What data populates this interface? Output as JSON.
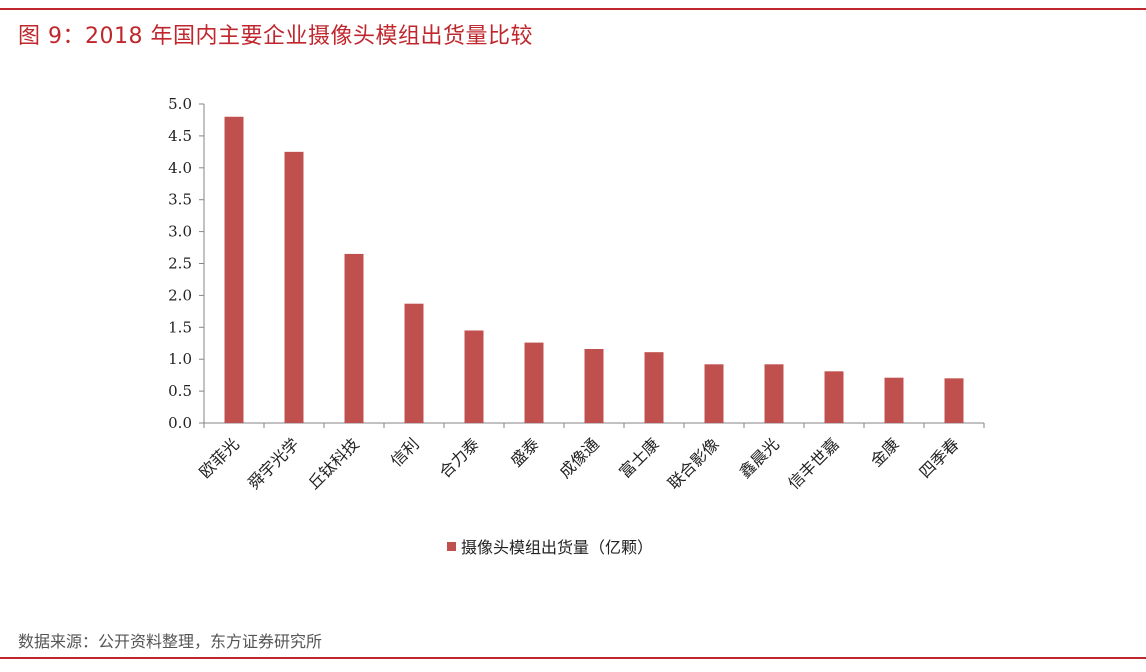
{
  "title": "图 9：2018 年国内主要企业摄像头模组出货量比较",
  "source": "数据来源：公开资料整理，东方证券研究所",
  "chart_data": {
    "type": "bar",
    "categories": [
      "欧菲光",
      "舜宇光学",
      "丘钛科技",
      "信利",
      "合力泰",
      "盛泰",
      "成像通",
      "富士康",
      "联合影像",
      "鑫晨光",
      "信丰世嘉",
      "金康",
      "四季春"
    ],
    "series": [
      {
        "name": "摄像头模组出货量（亿颗）",
        "values": [
          4.8,
          4.25,
          2.65,
          1.87,
          1.45,
          1.26,
          1.16,
          1.11,
          0.92,
          0.92,
          0.81,
          0.71,
          0.7
        ]
      }
    ],
    "yticks": [
      "0.0",
      "0.5",
      "1.0",
      "1.5",
      "2.0",
      "2.5",
      "3.0",
      "3.5",
      "4.0",
      "4.5",
      "5.0"
    ],
    "ylim": [
      0,
      5
    ],
    "grid": false,
    "legend_position": "bottom",
    "colors": {
      "bar": "#c0504d",
      "accent": "#c0272d"
    }
  }
}
